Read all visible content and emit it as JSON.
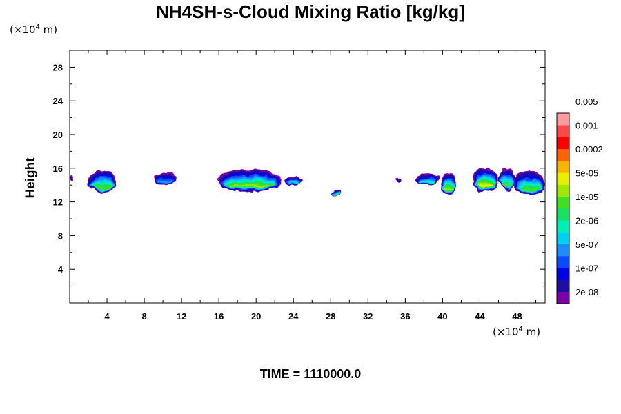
{
  "chart_data": {
    "type": "heatmap",
    "title": "NH4SH-s-Cloud Mixing Ratio [kg/kg]",
    "xlabel": "",
    "ylabel": "Height",
    "x_unit_prefix": "(×10",
    "x_unit_exp": "4",
    "x_unit_suffix": " m)",
    "y_unit_prefix": "(×10",
    "y_unit_exp": "4",
    "y_unit_suffix": " m)",
    "xlim": [
      0,
      51
    ],
    "ylim": [
      0,
      30
    ],
    "x_ticks": [
      4,
      8,
      12,
      16,
      20,
      24,
      28,
      32,
      36,
      40,
      44,
      48
    ],
    "y_ticks": [
      4,
      8,
      12,
      16,
      20,
      24,
      28
    ],
    "footer": "TIME = 1110000.0",
    "colorbar": {
      "colors": [
        "#7b00a8",
        "#1f0fa0",
        "#0000e6",
        "#0a4bff",
        "#1c8cff",
        "#00d0f0",
        "#00f0b8",
        "#18e060",
        "#40e020",
        "#a0e800",
        "#e8f000",
        "#f8b400",
        "#ff6400",
        "#ff0000",
        "#ff4848",
        "#ff9aa0"
      ],
      "labels": [
        "2e-08",
        "1e-07",
        "5e-07",
        "2e-06",
        "1e-05",
        "5e-05",
        "0.0002",
        "0.001",
        "0.005"
      ]
    },
    "cloud_patches": [
      {
        "x": [
          0,
          0.35
        ],
        "y": [
          14.4,
          15.0
        ],
        "max_level": 1
      },
      {
        "x": [
          2.0,
          5.0
        ],
        "y": [
          13.0,
          15.8
        ],
        "max_level": 8
      },
      {
        "x": [
          9.0,
          11.5
        ],
        "y": [
          14.0,
          15.5
        ],
        "max_level": 4
      },
      {
        "x": [
          15.8,
          22.8
        ],
        "y": [
          13.2,
          15.8
        ],
        "max_level": 9
      },
      {
        "x": [
          23.2,
          25.0
        ],
        "y": [
          14.0,
          15.0
        ],
        "max_level": 5
      },
      {
        "x": [
          28.2,
          29.0
        ],
        "y": [
          12.8,
          13.4
        ],
        "max_level": 8
      },
      {
        "x": [
          35.0,
          35.5
        ],
        "y": [
          14.4,
          14.9
        ],
        "max_level": 2
      },
      {
        "x": [
          37.2,
          39.6
        ],
        "y": [
          14.0,
          15.4
        ],
        "max_level": 6
      },
      {
        "x": [
          39.8,
          41.5
        ],
        "y": [
          12.8,
          15.5
        ],
        "max_level": 9
      },
      {
        "x": [
          43.2,
          46.0
        ],
        "y": [
          13.2,
          16.0
        ],
        "max_level": 10
      },
      {
        "x": [
          46.0,
          47.8
        ],
        "y": [
          13.3,
          16.0
        ],
        "max_level": 8
      },
      {
        "x": [
          47.6,
          51.0
        ],
        "y": [
          12.8,
          15.6
        ],
        "max_level": 8
      }
    ]
  }
}
